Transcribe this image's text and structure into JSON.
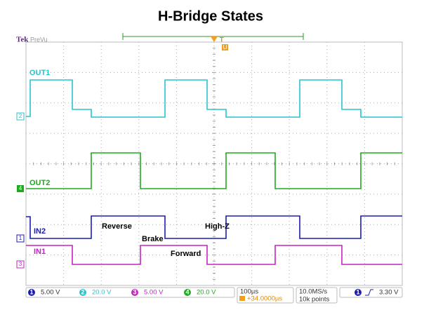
{
  "title": "H-Bridge States",
  "header": {
    "brand": "Tek",
    "mode": "PreVu",
    "trigger_marker": "T",
    "trigger_sub": "U"
  },
  "traces": [
    {
      "label": "OUT1",
      "channel": "2"
    },
    {
      "label": "OUT2",
      "channel": "4"
    },
    {
      "label": "IN2",
      "channel": "1"
    },
    {
      "label": "IN1",
      "channel": "3"
    }
  ],
  "annotations": [
    "Reverse",
    "Brake",
    "High-Z",
    "Forward"
  ],
  "status_bar": {
    "channels": [
      {
        "channel": "1",
        "scale": "5.00 V"
      },
      {
        "channel": "2",
        "scale": "20.0 V"
      },
      {
        "channel": "3",
        "scale": "5.00 V"
      },
      {
        "channel": "4",
        "scale": "20.0 V"
      }
    ],
    "timebase": "100µs",
    "position": "+34.0000µs",
    "sample_rate": "10.0MS/s",
    "record_length": "10k points",
    "trigger_channel": "1",
    "trigger_level": "3.30 V"
  }
}
